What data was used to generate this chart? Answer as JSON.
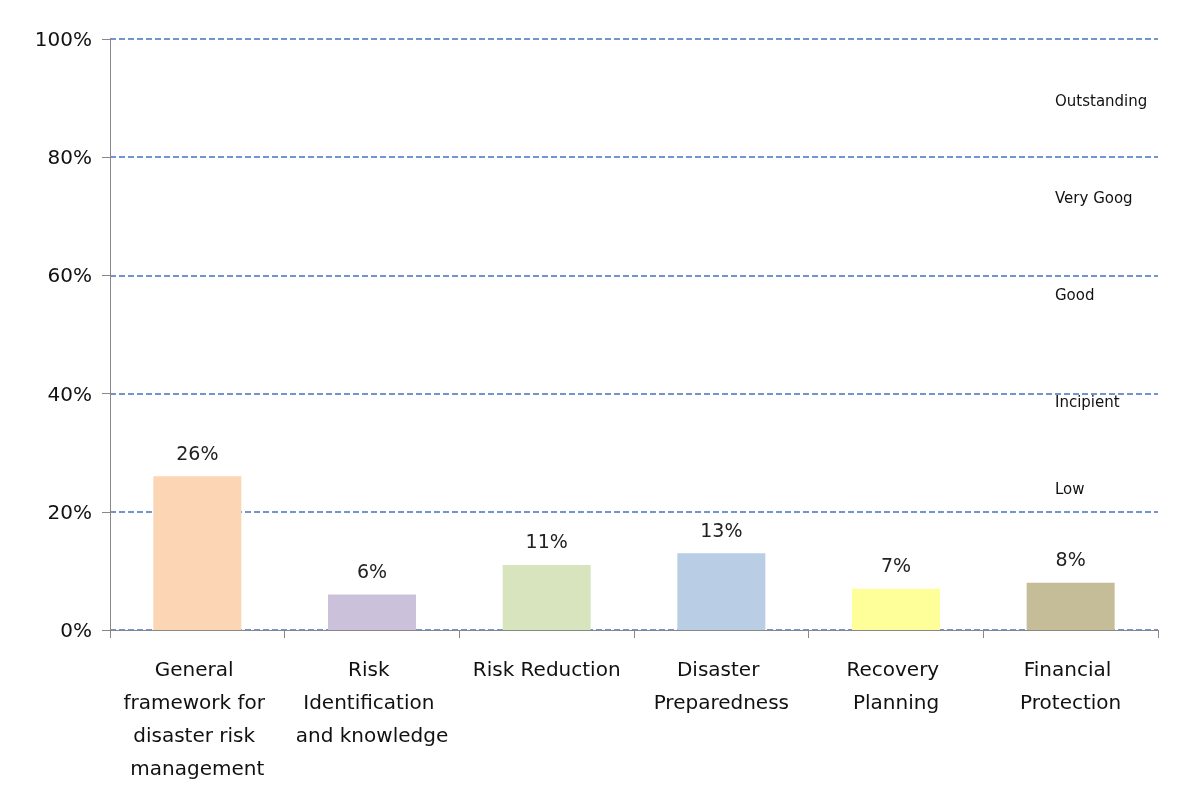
{
  "chart_data": {
    "type": "bar",
    "categories": [
      "General framework for disaster risk management",
      "Risk Identification and knowledge",
      "Risk Reduction",
      "Disaster Preparedness",
      "Recovery Planning",
      "Financial Protection"
    ],
    "values": [
      26,
      6,
      11,
      13,
      7,
      8
    ],
    "colors": [
      "#fcd5b5",
      "#ccc1da",
      "#d7e4bd",
      "#b9cde5",
      "#ffff99",
      "#c4bd97"
    ],
    "ylim": [
      0,
      100
    ],
    "yticks": [
      {
        "value": 0,
        "label": "0%"
      },
      {
        "value": 20,
        "label": "20%"
      },
      {
        "value": 40,
        "label": "40%"
      },
      {
        "value": 60,
        "label": "60%"
      },
      {
        "value": 80,
        "label": "80%"
      },
      {
        "value": 100,
        "label": "100%"
      }
    ],
    "grid": "y",
    "value_labels": [
      "26%",
      "6%",
      "11%",
      "13%",
      "7%",
      "8%"
    ],
    "annotations": [
      "Outstanding",
      "Very Goog",
      "Good",
      "Incipient",
      "Low"
    ]
  }
}
